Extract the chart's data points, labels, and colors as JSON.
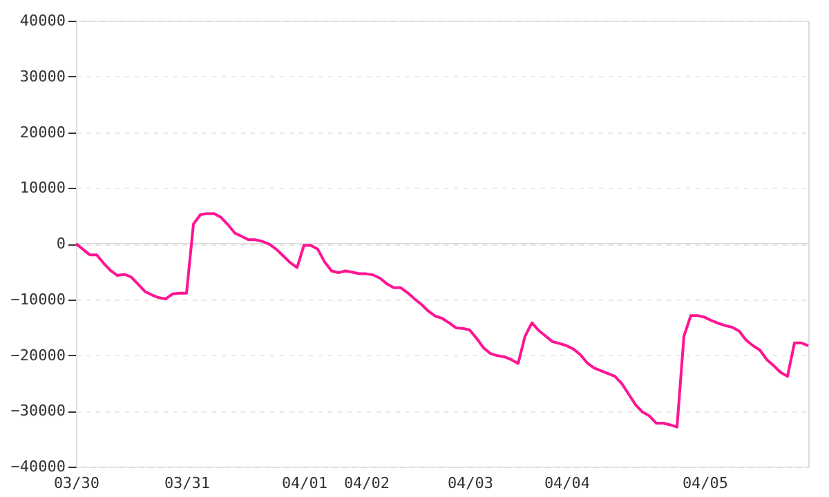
{
  "chart_data": {
    "type": "line",
    "categories": [
      "03/30",
      null,
      null,
      null,
      null,
      null,
      null,
      null,
      null,
      null,
      null,
      null,
      null,
      null,
      null,
      null,
      "03/31",
      null,
      null,
      null,
      null,
      null,
      null,
      null,
      null,
      null,
      null,
      null,
      null,
      null,
      null,
      null,
      null,
      "04/01",
      null,
      null,
      null,
      null,
      null,
      null,
      null,
      null,
      "04/02",
      null,
      null,
      null,
      null,
      null,
      null,
      null,
      null,
      null,
      null,
      null,
      null,
      null,
      null,
      "04/03",
      null,
      null,
      null,
      null,
      null,
      null,
      null,
      null,
      null,
      null,
      null,
      null,
      null,
      "04/04",
      null,
      null,
      null,
      null,
      null,
      null,
      null,
      null,
      null,
      null,
      null,
      null,
      null,
      null,
      null,
      null,
      null,
      null,
      null,
      "04/05",
      null,
      null,
      null,
      null,
      null,
      null,
      null,
      null,
      null,
      null,
      null,
      null,
      null,
      null,
      null
    ],
    "series": [
      {
        "color": "#ff1493",
        "values": [
          0,
          -1000,
          -2000,
          -2000,
          -3500,
          -4800,
          -5700,
          -5500,
          -6000,
          -7300,
          -8600,
          -9200,
          -9700,
          -9900,
          -9000,
          -8900,
          -8900,
          3500,
          5200,
          5400,
          5400,
          4700,
          3400,
          1900,
          1300,
          700,
          700,
          400,
          -100,
          -1000,
          -2200,
          -3400,
          -4300,
          -300,
          -300,
          -1000,
          -3300,
          -4900,
          -5200,
          -4900,
          -5100,
          -5400,
          -5400,
          -5600,
          -6200,
          -7200,
          -7900,
          -7900,
          -8800,
          -9900,
          -10900,
          -12100,
          -13000,
          -13400,
          -14200,
          -15100,
          -15200,
          -15500,
          -17000,
          -18700,
          -19700,
          -20100,
          -20300,
          -20800,
          -21500,
          -16600,
          -14200,
          -15600,
          -16600,
          -17600,
          -17900,
          -18300,
          -18900,
          -19900,
          -21400,
          -22300,
          -22800,
          -23300,
          -23800,
          -25100,
          -27000,
          -28900,
          -30200,
          -30900,
          -32200,
          -32200,
          -32500,
          -32900,
          -16600,
          -12900,
          -12900,
          -13200,
          -13800,
          -14300,
          -14700,
          -15000,
          -15700,
          -17300,
          -18300,
          -19100,
          -20800,
          -21900,
          -23100,
          -23800,
          -17800,
          -17800,
          -18300
        ]
      }
    ],
    "ylim": [
      -40000,
      40000
    ],
    "yticks": [
      -40000,
      -30000,
      -20000,
      -10000,
      0,
      10000,
      20000,
      30000,
      40000
    ],
    "grid": "y",
    "ref_lines": [
      {
        "axis": "y",
        "value": 0,
        "color": "#dddddd",
        "line_style": "solid"
      }
    ],
    "line_style": "solid",
    "marker": "none"
  }
}
